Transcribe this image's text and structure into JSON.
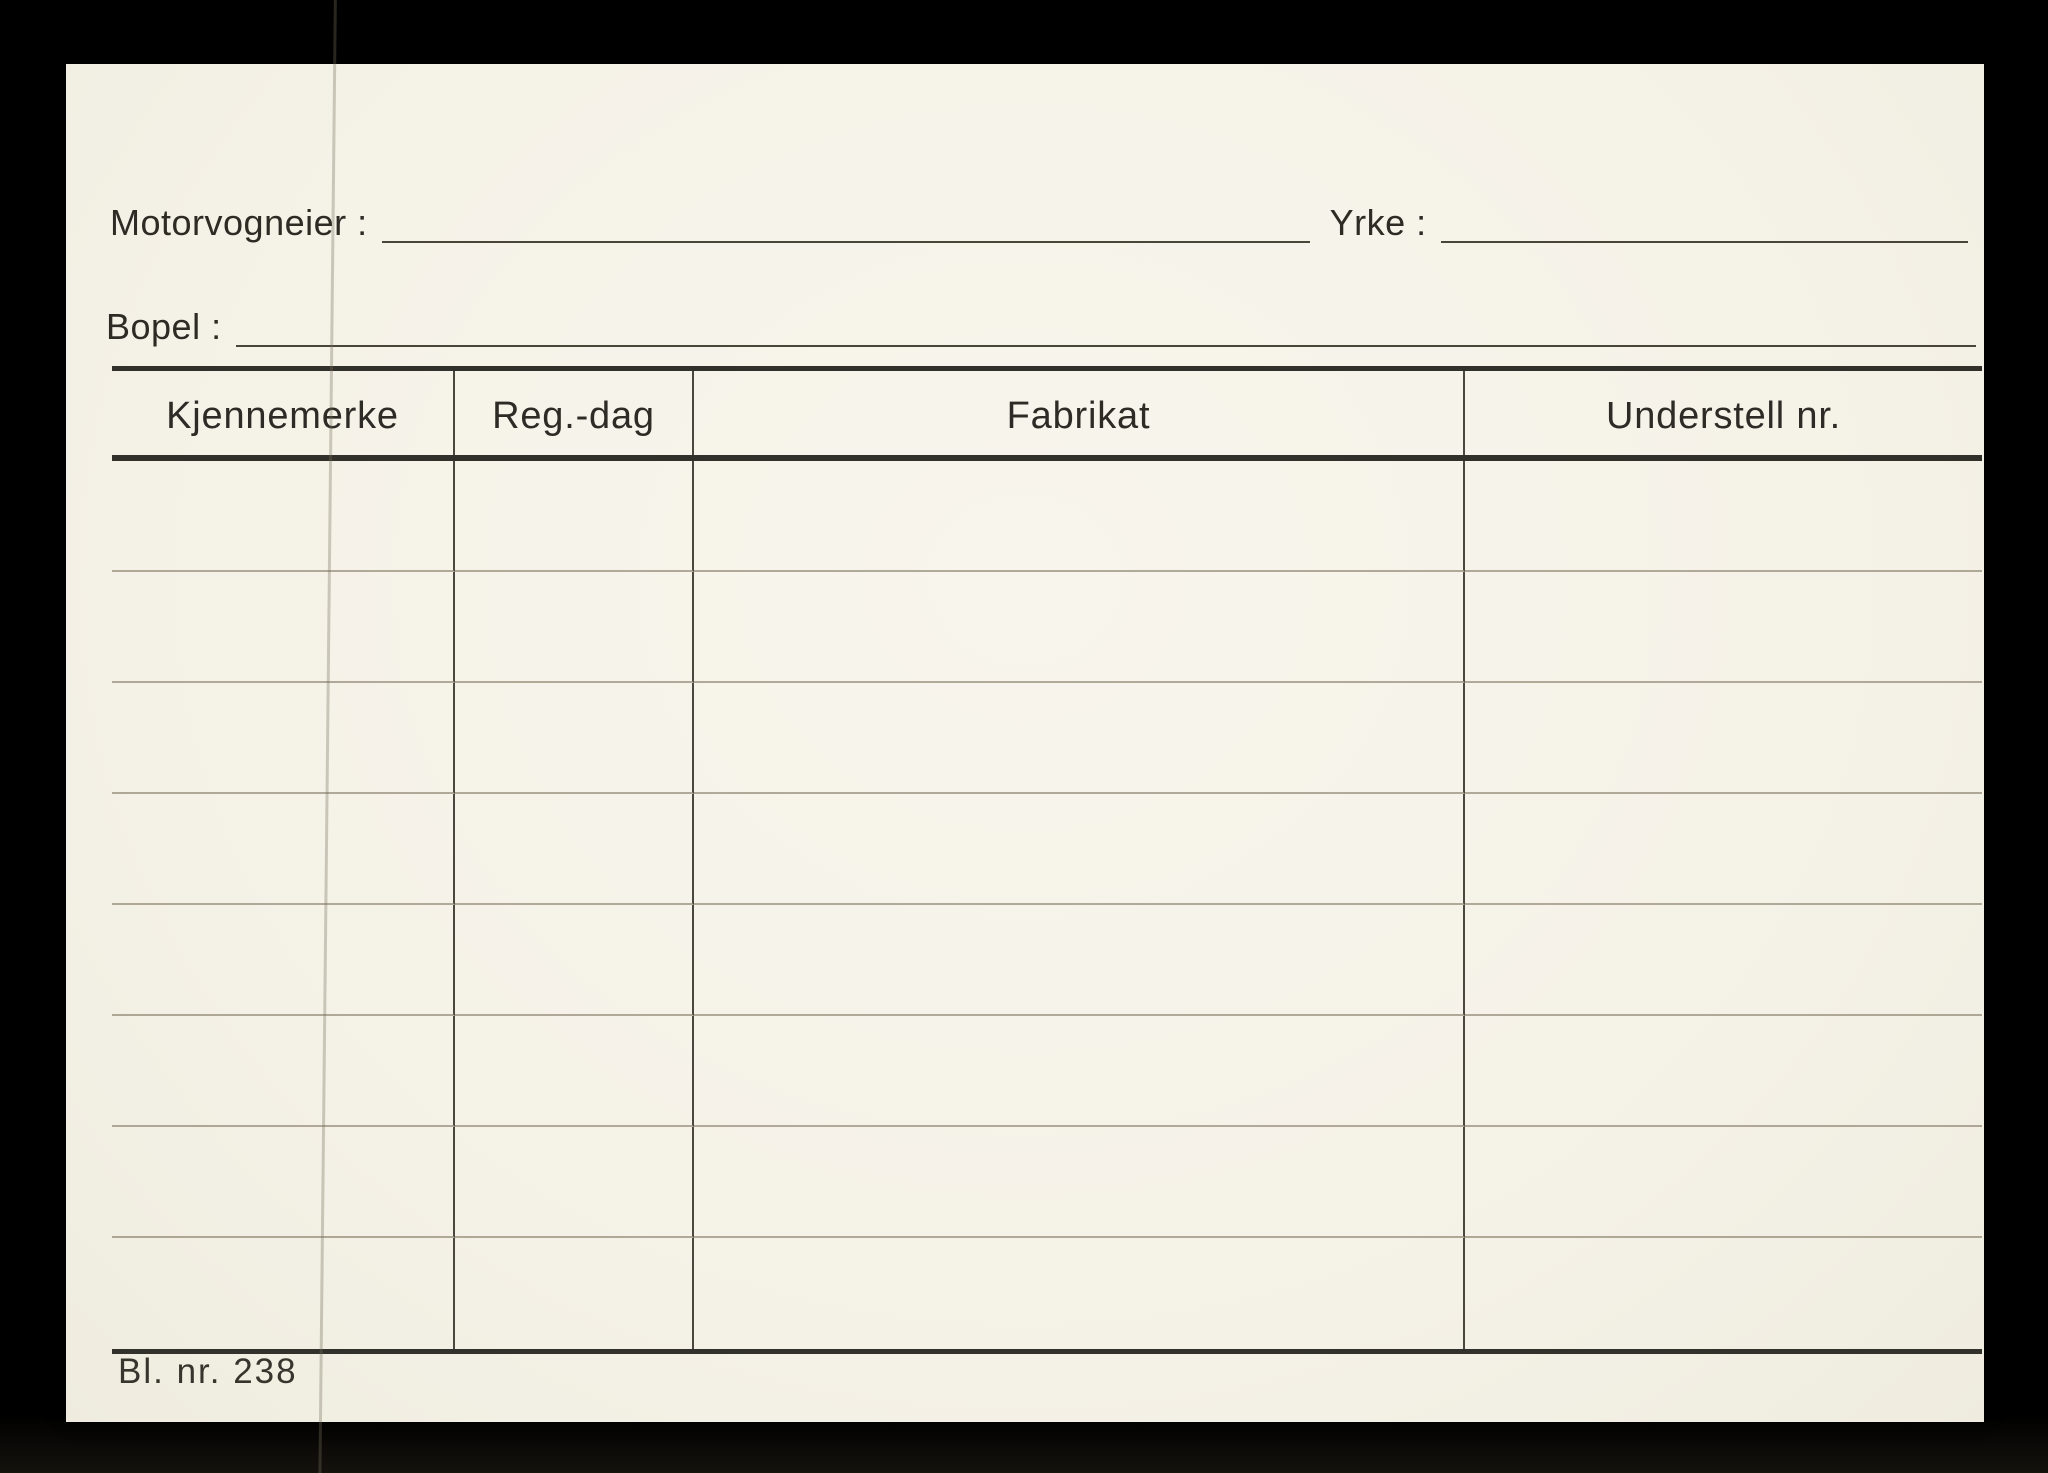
{
  "document": {
    "kind": "scanned registration index card"
  },
  "fields": {
    "owner_label": "Motorvogneier :",
    "owner_value": "",
    "occupation_label": "Yrke :",
    "occupation_value": "",
    "residence_label": "Bopel :",
    "residence_value": ""
  },
  "table": {
    "headers": [
      "Kjennemerke",
      "Reg.-dag",
      "Fabrikat",
      "Understell nr."
    ],
    "rows": [
      [
        "",
        "",
        "",
        ""
      ],
      [
        "",
        "",
        "",
        ""
      ],
      [
        "",
        "",
        "",
        ""
      ],
      [
        "",
        "",
        "",
        ""
      ],
      [
        "",
        "",
        "",
        ""
      ],
      [
        "",
        "",
        "",
        ""
      ],
      [
        "",
        "",
        "",
        ""
      ],
      [
        "",
        "",
        "",
        ""
      ]
    ]
  },
  "footer": {
    "form_number": "Bl. nr. 238"
  },
  "colors": {
    "background": "#000000",
    "card": "#f5f2e8",
    "ink": "#2e2b25",
    "rule_thick": "#32302a",
    "rule_thin": "#8d8268",
    "rule_vertical": "#4b473f"
  }
}
